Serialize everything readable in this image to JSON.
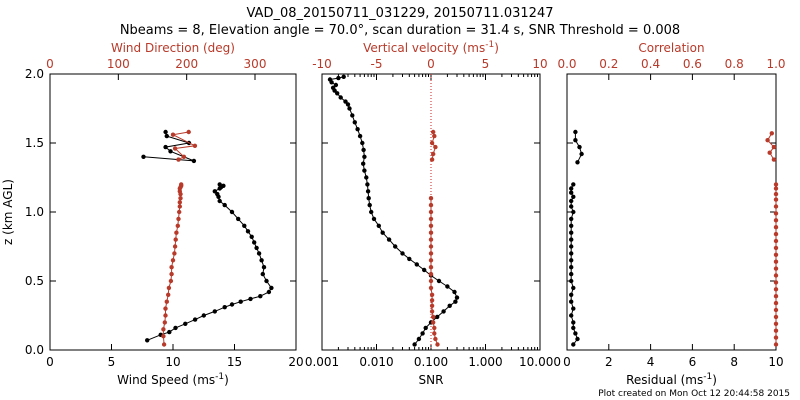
{
  "header": {
    "line1": "VAD_08_20150711_031229, 20150711.031247",
    "line2": "Nbeams = 8, Elevation angle = 70.0°, scan duration = 31.4 s, SNR Threshold = 0.008"
  },
  "footer": {
    "created": "Plot created on Mon Oct 12 20:44:58 2015"
  },
  "colors": {
    "primary": "#000000",
    "secondary": "#b83a2a",
    "zeroline": "#cc2222"
  },
  "chart_data": [
    {
      "type": "line",
      "ylabel": "z (km AGL)",
      "ylim": [
        0,
        2.0
      ],
      "yticks": [
        "0.0",
        "0.5",
        "1.0",
        "1.5",
        "2.0"
      ],
      "bottom_axis": {
        "label": "Wind Speed (ms",
        "label_sup": "-1",
        "label_end": ")",
        "xlim": [
          0,
          20
        ],
        "ticks": [
          "0",
          "5",
          "10",
          "15",
          "20"
        ]
      },
      "top_axis": {
        "label": "Wind Direction (deg)",
        "xlim": [
          0,
          360
        ],
        "ticks": [
          "0",
          "100",
          "200",
          "300"
        ]
      },
      "series": [
        {
          "axis": "bottom",
          "color": "black",
          "x": [
            7.9,
            9.0,
            9.7,
            10.2,
            11.0,
            11.8,
            12.5,
            13.4,
            14.2,
            14.8,
            15.5,
            16.3,
            17.1,
            17.8,
            18.0,
            17.6,
            17.3,
            17.4,
            17.2,
            17.0,
            16.8,
            16.6,
            16.4,
            16.1,
            15.8,
            15.3,
            14.8,
            14.2,
            13.8,
            13.7,
            13.6,
            13.4,
            13.8,
            13.9,
            14.1,
            13.8
          ],
          "y": [
            0.07,
            0.11,
            0.13,
            0.16,
            0.19,
            0.22,
            0.25,
            0.28,
            0.31,
            0.33,
            0.35,
            0.37,
            0.39,
            0.42,
            0.45,
            0.5,
            0.55,
            0.6,
            0.65,
            0.7,
            0.74,
            0.78,
            0.82,
            0.86,
            0.9,
            0.95,
            1.0,
            1.05,
            1.08,
            1.11,
            1.13,
            1.15,
            1.17,
            1.18,
            1.19,
            1.2
          ]
        },
        {
          "axis": "bottom",
          "color": "black",
          "x": [
            7.6,
            11.7,
            9.8,
            9.4,
            11.3,
            9.5,
            9.4
          ],
          "y": [
            1.4,
            1.37,
            1.44,
            1.47,
            1.5,
            1.55,
            1.58
          ]
        },
        {
          "axis": "top",
          "color": "red",
          "x": [
            167,
            166,
            166,
            168,
            169,
            169,
            171,
            173,
            174,
            177,
            178,
            178,
            180,
            182,
            183,
            184,
            185,
            187,
            188,
            189,
            190,
            190,
            191,
            191,
            190,
            190,
            191,
            192,
            192
          ],
          "y": [
            0.04,
            0.1,
            0.15,
            0.2,
            0.25,
            0.3,
            0.35,
            0.4,
            0.45,
            0.5,
            0.55,
            0.6,
            0.65,
            0.7,
            0.75,
            0.8,
            0.85,
            0.9,
            0.95,
            1.0,
            1.04,
            1.07,
            1.1,
            1.13,
            1.15,
            1.17,
            1.18,
            1.19,
            1.2
          ]
        },
        {
          "axis": "top",
          "color": "red",
          "x": [
            188,
            196,
            183,
            212,
            180,
            203
          ],
          "y": [
            1.38,
            1.4,
            1.46,
            1.48,
            1.56,
            1.58
          ]
        }
      ]
    },
    {
      "type": "line",
      "bottom_axis": {
        "label": "SNR",
        "scale": "log",
        "xlim": [
          0.001,
          10
        ],
        "ticks": [
          "0.001",
          "0.010",
          "0.100",
          "1.000",
          "10.000"
        ]
      },
      "top_axis": {
        "label": "Vertical velocity (ms",
        "label_sup": "-1",
        "label_end": ")",
        "xlim": [
          -10,
          10
        ],
        "ticks": [
          "-10",
          "-5",
          "0",
          "5",
          "10"
        ],
        "zero_line": true
      },
      "series": [
        {
          "axis": "bottom",
          "color": "black",
          "x": [
            0.05,
            0.06,
            0.07,
            0.08,
            0.1,
            0.13,
            0.17,
            0.22,
            0.28,
            0.3,
            0.27,
            0.2,
            0.14,
            0.1,
            0.075,
            0.055,
            0.04,
            0.03,
            0.022,
            0.017,
            0.013,
            0.011,
            0.009,
            0.008,
            0.0075,
            0.0072,
            0.007,
            0.0068,
            0.0065,
            0.006,
            0.0057,
            0.006,
            0.0058,
            0.0055,
            0.005,
            0.0045,
            0.004,
            0.0036,
            0.0032,
            0.003,
            0.0027,
            0.0022,
            0.0019,
            0.0017,
            0.0016,
            0.0018,
            0.0015,
            0.0014,
            0.002,
            0.0025
          ],
          "y": [
            0.04,
            0.08,
            0.12,
            0.16,
            0.2,
            0.24,
            0.28,
            0.32,
            0.35,
            0.38,
            0.42,
            0.46,
            0.5,
            0.54,
            0.58,
            0.62,
            0.66,
            0.7,
            0.75,
            0.8,
            0.85,
            0.9,
            0.95,
            1.0,
            1.05,
            1.1,
            1.15,
            1.2,
            1.25,
            1.3,
            1.35,
            1.4,
            1.45,
            1.5,
            1.55,
            1.6,
            1.65,
            1.7,
            1.75,
            1.78,
            1.8,
            1.83,
            1.86,
            1.88,
            1.9,
            1.92,
            1.94,
            1.96,
            1.97,
            1.98
          ]
        },
        {
          "axis": "top",
          "color": "red",
          "x": [
            0.6,
            0.4,
            0.3,
            0.3,
            0.2,
            0.2,
            0.1,
            0.1,
            0.1,
            0.1,
            0,
            0,
            0,
            0,
            0,
            0,
            0,
            0,
            0,
            0,
            0,
            0,
            0,
            0
          ],
          "y": [
            0.04,
            0.08,
            0.12,
            0.16,
            0.2,
            0.24,
            0.28,
            0.32,
            0.36,
            0.4,
            0.45,
            0.5,
            0.55,
            0.6,
            0.65,
            0.7,
            0.75,
            0.8,
            0.85,
            0.9,
            0.95,
            1.0,
            1.05,
            1.1
          ]
        },
        {
          "axis": "top",
          "color": "red",
          "x": [
            0.1,
            0.2,
            0.4,
            0.1,
            0.3,
            0.2
          ],
          "y": [
            1.38,
            1.42,
            1.47,
            1.5,
            1.55,
            1.58
          ]
        }
      ]
    },
    {
      "type": "line",
      "bottom_axis": {
        "label": "Residual (ms",
        "label_sup": "-1",
        "label_end": ")",
        "xlim": [
          0,
          10
        ],
        "ticks": [
          "0",
          "2",
          "4",
          "6",
          "8",
          "10"
        ]
      },
      "top_axis": {
        "label": "Correlation",
        "xlim": [
          0,
          1.0
        ],
        "ticks": [
          "0.0",
          "0.2",
          "0.4",
          "0.6",
          "0.8",
          "1.0"
        ]
      },
      "series": [
        {
          "axis": "bottom",
          "color": "black",
          "x": [
            0.3,
            0.5,
            0.4,
            0.3,
            0.3,
            0.2,
            0.3,
            0.2,
            0.2,
            0.3,
            0.2,
            0.2,
            0.2,
            0.2,
            0.2,
            0.2,
            0.2,
            0.2,
            0.2,
            0.2,
            0.3,
            0.2,
            0.2,
            0.3,
            0.2,
            0.2,
            0.3
          ],
          "y": [
            0.04,
            0.08,
            0.12,
            0.16,
            0.2,
            0.25,
            0.3,
            0.35,
            0.4,
            0.45,
            0.5,
            0.55,
            0.6,
            0.65,
            0.7,
            0.75,
            0.8,
            0.85,
            0.9,
            0.95,
            1.0,
            1.04,
            1.08,
            1.11,
            1.14,
            1.17,
            1.2
          ]
        },
        {
          "axis": "bottom",
          "color": "black",
          "x": [
            0.5,
            0.7,
            0.6,
            0.4,
            0.4
          ],
          "y": [
            1.36,
            1.42,
            1.47,
            1.52,
            1.58
          ]
        },
        {
          "axis": "top",
          "color": "red",
          "x": [
            1.0,
            1.0,
            1.0,
            1.0,
            1.0,
            1.0,
            1.0,
            1.0,
            1.0,
            1.0,
            1.0,
            1.0,
            1.0,
            1.0,
            1.0,
            1.0,
            1.0,
            1.0,
            1.0,
            1.0,
            1.0,
            1.0,
            1.0,
            1.0,
            1.0
          ],
          "y": [
            0.04,
            0.09,
            0.14,
            0.19,
            0.24,
            0.29,
            0.34,
            0.39,
            0.44,
            0.49,
            0.54,
            0.59,
            0.64,
            0.69,
            0.74,
            0.79,
            0.84,
            0.89,
            0.94,
            0.99,
            1.04,
            1.09,
            1.13,
            1.17,
            1.2
          ]
        },
        {
          "axis": "top",
          "color": "red",
          "x": [
            0.99,
            0.97,
            0.99,
            0.96,
            0.98
          ],
          "y": [
            1.38,
            1.43,
            1.47,
            1.52,
            1.57
          ]
        }
      ]
    }
  ]
}
